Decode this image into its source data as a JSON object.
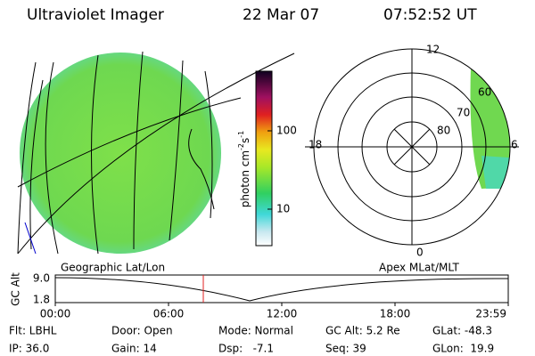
{
  "header": {
    "title": "Ultraviolet Imager",
    "date": "22 Mar 07",
    "time": "07:52:52 UT"
  },
  "colorbar": {
    "ticks": [
      "100",
      "10"
    ],
    "label": {
      "base": "photon cm",
      "exp1": "-2",
      "unit": "s",
      "exp2": "-1"
    }
  },
  "polar": {
    "hours": [
      "12",
      "18",
      "6",
      "0"
    ],
    "latitudes": [
      "60",
      "70",
      "80"
    ]
  },
  "timeline": {
    "left_title": "Geographic Lat/Lon",
    "right_title": "Apex MLat/MLT",
    "axis_label": "GC Alt",
    "yticks": [
      "9.0",
      "1.8"
    ],
    "xticks": [
      "00:00",
      "06:00",
      "12:00",
      "18:00",
      "23:59"
    ]
  },
  "footer": [
    [
      "Flt: LBHL",
      "IP: 36.0"
    ],
    [
      "Door: Open",
      "Gain: 14"
    ],
    [
      "Mode: Normal",
      "Dsp:   -7.1"
    ],
    [
      "GC Alt: 5.2 Re",
      "Seq: 39"
    ],
    [
      "GLat: -48.3",
      "GLon:  19.9"
    ]
  ]
}
